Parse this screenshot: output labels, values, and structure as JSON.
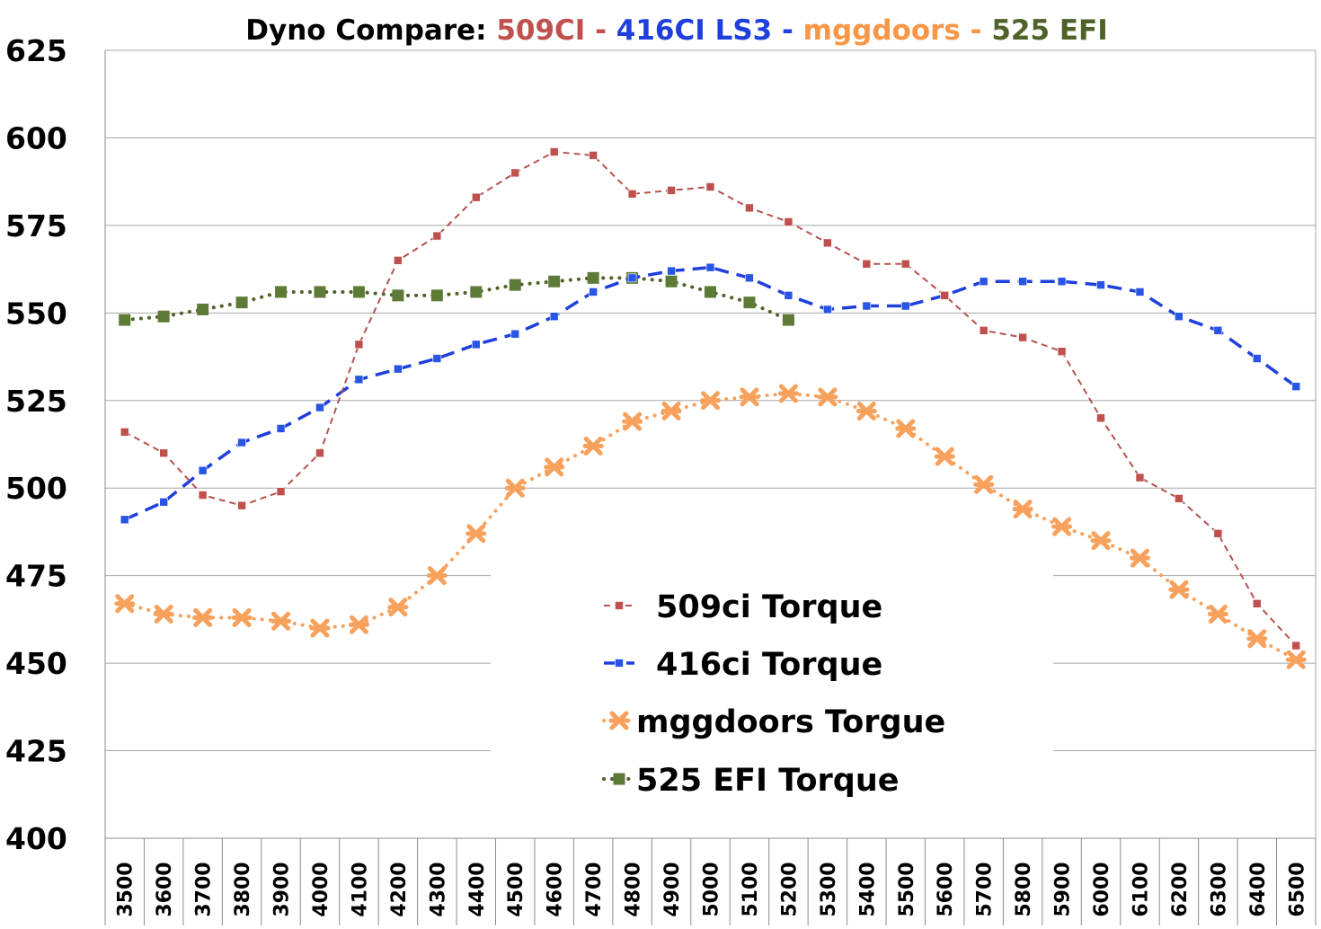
{
  "chart_data": {
    "type": "line",
    "title_parts": [
      {
        "text": "Dyno Compare: ",
        "color": "#000000"
      },
      {
        "text": "509CI",
        "color": "#c0504d"
      },
      {
        "text": " - ",
        "color": "#c0504d"
      },
      {
        "text": "416CI LS3",
        "color": "#1f3fdc"
      },
      {
        "text": " - ",
        "color": "#1f3fdc"
      },
      {
        "text": "mggdoors",
        "color": "#f79646"
      },
      {
        "text": " - ",
        "color": "#f79646"
      },
      {
        "text": "525 EFI",
        "color": "#4f6228"
      }
    ],
    "x": [
      "3500",
      "3600",
      "3700",
      "3800",
      "3900",
      "4000",
      "4100",
      "4200",
      "4300",
      "4400",
      "4500",
      "4600",
      "4700",
      "4800",
      "4900",
      "5000",
      "5100",
      "5200",
      "5300",
      "5400",
      "5500",
      "5600",
      "5700",
      "5800",
      "5900",
      "6000",
      "6100",
      "6200",
      "6300",
      "6400",
      "6500"
    ],
    "ylim": [
      400,
      625
    ],
    "yticks": [
      "400",
      "425",
      "450",
      "475",
      "500",
      "525",
      "550",
      "575",
      "600",
      "625"
    ],
    "ytick_values": [
      400,
      425,
      450,
      475,
      500,
      525,
      550,
      575,
      600,
      625
    ],
    "grid": true,
    "legend_position": "center-bottom",
    "series": [
      {
        "name": "509ci Torque",
        "color": "#c0504d",
        "line_color": "#b5524f",
        "marker": "square-small",
        "dash": "dashed",
        "values": [
          516,
          510,
          498,
          495,
          499,
          510,
          541,
          565,
          572,
          583,
          590,
          596,
          595,
          584,
          585,
          586,
          580,
          576,
          570,
          564,
          564,
          555,
          545,
          543,
          539,
          520,
          503,
          497,
          487,
          467,
          455
        ]
      },
      {
        "name": "416ci Torque",
        "color": "#2855e6",
        "line_color": "#1f3fdc",
        "marker": "square-small",
        "dash": "long-dash",
        "values": [
          491,
          496,
          505,
          513,
          517,
          523,
          531,
          534,
          537,
          541,
          544,
          549,
          556,
          560,
          562,
          563,
          560,
          555,
          551,
          552,
          552,
          555,
          559,
          559,
          559,
          558,
          556,
          549,
          545,
          537,
          529
        ]
      },
      {
        "name": "mggdoors Torgue",
        "color": "#f7a15c",
        "line_color": "#f7a15c",
        "marker": "x-star",
        "dash": "dotted",
        "values": [
          467,
          464,
          463,
          463,
          462,
          460,
          461,
          466,
          475,
          487,
          500,
          506,
          512,
          519,
          522,
          525,
          526,
          527,
          526,
          522,
          517,
          509,
          501,
          494,
          489,
          485,
          480,
          471,
          464,
          457,
          451
        ]
      },
      {
        "name": "525 EFI Torque",
        "color": "#5e7a37",
        "line_color": "#4f6228",
        "marker": "square-large",
        "dash": "dotted",
        "values": [
          548,
          549,
          551,
          553,
          556,
          556,
          556,
          555,
          555,
          556,
          558,
          559,
          560,
          560,
          559,
          556,
          553,
          548,
          null,
          null,
          null,
          null,
          null,
          null,
          null,
          null,
          null,
          null,
          null,
          null,
          null
        ]
      }
    ]
  }
}
